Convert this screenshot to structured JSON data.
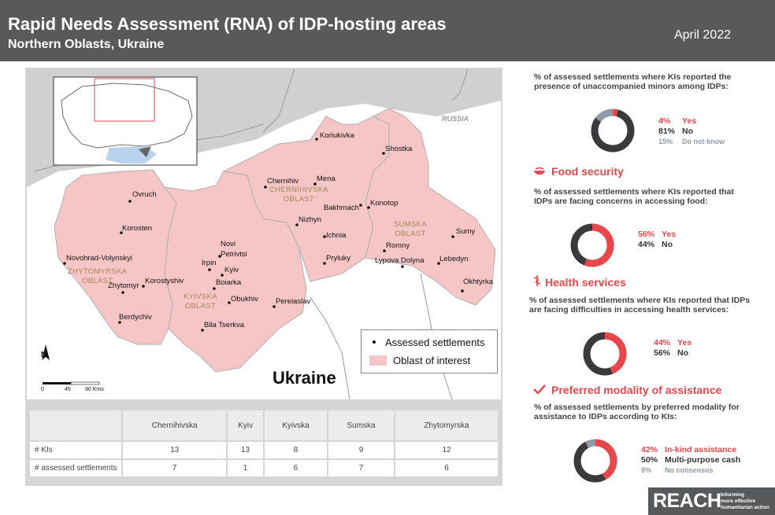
{
  "header": {
    "title": "Rapid Needs Assessment (RNA) of IDP-hosting areas",
    "subtitle": "Northern Oblasts, Ukraine",
    "date": "April 2022"
  },
  "map": {
    "country_label": "Ukraine",
    "neighbor_label": "RUSSIA",
    "oblasts": [
      {
        "line1": "CHERNIHIVSKA",
        "line2": "OBLAST"
      },
      {
        "line1": "SUMSKA",
        "line2": "OBLAST"
      },
      {
        "line1": "ZHYTOMYRSKA",
        "line2": "OBLAST"
      },
      {
        "line1": "KYIVSKA",
        "line2": "OBLAST"
      }
    ],
    "settlements": [
      "Koriukivka",
      "Shostka",
      "Chernihiv",
      "Mena",
      "Konotop",
      "Bakhmach",
      "Nizhyn",
      "Ichnia",
      "Romny",
      "Sumy",
      "Pryluky",
      "Lypova Dolyna",
      "Lebedyn",
      "Okhtyrka",
      "Ovruch",
      "Korosten",
      "Novohrad-Volynskyi",
      "Zhytomyr",
      "Korostyshiv",
      "Berdychiv",
      "Novi Petrivtsi",
      "Irpin",
      "Kyiv",
      "Boiarka",
      "Obukhiv",
      "Pereiaslav",
      "Bila Tserkva"
    ],
    "legend": {
      "settlements": "Assessed settlements",
      "oblast": "Oblast of interest"
    },
    "north": "N",
    "scale": [
      "0",
      "45",
      "90 Kms"
    ]
  },
  "table": {
    "columns": [
      "Chernihivska",
      "Kyiv",
      "Kyivska",
      "Sumska",
      "Zhytomyrska"
    ],
    "rows": [
      {
        "label": "# KIs",
        "values": [
          "13",
          "13",
          "8",
          "9",
          "12"
        ]
      },
      {
        "label": "# assessed settlements",
        "values": [
          "7",
          "1",
          "6",
          "7",
          "6"
        ]
      }
    ]
  },
  "sections": {
    "minors": {
      "question": "% of assessed settlements where KIs reported the presence of unaccompanied minors among IDPs:",
      "items": [
        {
          "pct": "4%",
          "label": "Yes",
          "value": 4,
          "color": "#e5474b"
        },
        {
          "pct": "81%",
          "label": "No",
          "value": 81,
          "color": "#3a3a3c"
        },
        {
          "pct": "15%",
          "label": "Do not know",
          "value": 15,
          "color": "#8d9aa7"
        }
      ]
    },
    "food": {
      "title": "Food security",
      "question": "% of assessed settlements where KIs reported that IDPs are facing concerns in accessing food:",
      "items": [
        {
          "pct": "56%",
          "label": "Yes",
          "value": 56,
          "color": "#e5474b"
        },
        {
          "pct": "44%",
          "label": "No",
          "value": 44,
          "color": "#3a3a3c"
        }
      ]
    },
    "health": {
      "title": "Health services",
      "question": "% of assessed settlements where KIs reported that IDPs are facing difficulties in accessing health services:",
      "items": [
        {
          "pct": "44%",
          "label": "Yes",
          "value": 44,
          "color": "#e5474b"
        },
        {
          "pct": "56%",
          "label": "No",
          "value": 56,
          "color": "#3a3a3c"
        }
      ]
    },
    "modality": {
      "title": "Preferred modality of assistance",
      "question": "% of assessed settlements by preferred modality for assistance to IDPs according to KIs:",
      "items": [
        {
          "pct": "42%",
          "label": "In-kind assistance",
          "value": 42,
          "color": "#e5474b"
        },
        {
          "pct": "50%",
          "label": "Multi-purpose cash",
          "value": 50,
          "color": "#3a3a3c"
        },
        {
          "pct": "8%",
          "label": "No consensus",
          "value": 8,
          "color": "#8d9aa7"
        }
      ]
    }
  },
  "footer": {
    "logo": "REACH",
    "tagline": [
      "Informing",
      "more effective",
      "humanitarian action"
    ]
  }
}
